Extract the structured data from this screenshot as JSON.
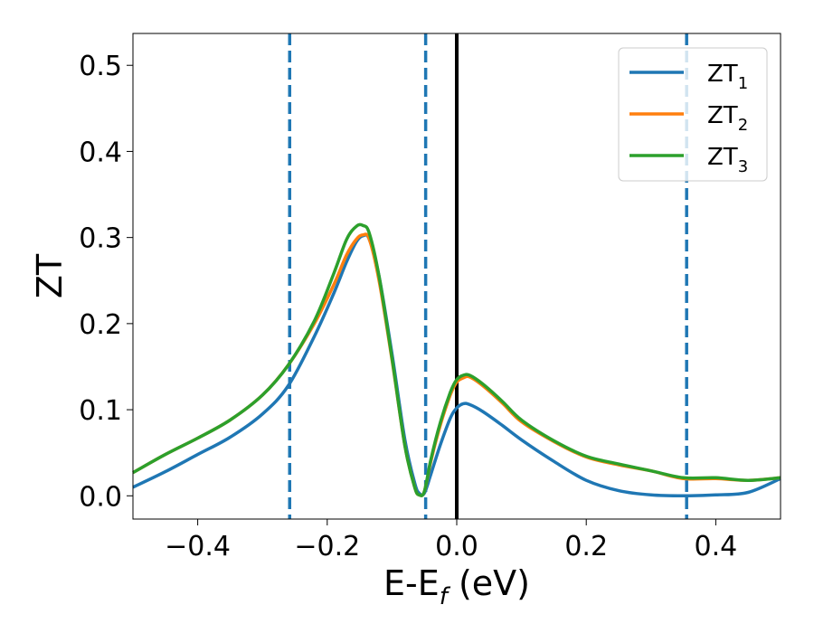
{
  "chart_data": {
    "type": "line",
    "xlabel": "E-E",
    "xlabel_sub": "f",
    "xlabel_unit": " (eV)",
    "ylabel": "ZT",
    "xlim": [
      -0.5,
      0.5
    ],
    "ylim": [
      -0.027,
      0.537
    ],
    "xticks": [
      -0.4,
      -0.2,
      0.0,
      0.2,
      0.4
    ],
    "xtick_labels": [
      "−0.4",
      "−0.2",
      "0.0",
      "0.2",
      "0.4"
    ],
    "yticks": [
      0.0,
      0.1,
      0.2,
      0.3,
      0.4,
      0.5
    ],
    "ytick_labels": [
      "0.0",
      "0.1",
      "0.2",
      "0.3",
      "0.4",
      "0.5"
    ],
    "legend_position": "top-right",
    "grid": false,
    "vertical_lines": [
      {
        "x": -0.258,
        "style": "dashed",
        "color": "#1f77b4"
      },
      {
        "x": -0.048,
        "style": "dashed",
        "color": "#1f77b4"
      },
      {
        "x": 0.0,
        "style": "solid",
        "color": "#000000"
      },
      {
        "x": 0.355,
        "style": "dashed",
        "color": "#1f77b4"
      }
    ],
    "series": [
      {
        "name": "ZT",
        "name_sub": "1",
        "color": "#1f77b4",
        "x": [
          -0.5,
          -0.45,
          -0.4,
          -0.35,
          -0.3,
          -0.26,
          -0.22,
          -0.19,
          -0.17,
          -0.155,
          -0.145,
          -0.135,
          -0.12,
          -0.1,
          -0.08,
          -0.065,
          -0.058,
          -0.05,
          -0.04,
          -0.025,
          -0.01,
          0.0,
          0.01,
          0.02,
          0.04,
          0.07,
          0.1,
          0.15,
          0.2,
          0.25,
          0.3,
          0.35,
          0.4,
          0.45,
          0.5
        ],
        "values": [
          0.01,
          0.028,
          0.048,
          0.068,
          0.095,
          0.128,
          0.185,
          0.235,
          0.272,
          0.295,
          0.302,
          0.298,
          0.255,
          0.165,
          0.065,
          0.015,
          0.003,
          0.003,
          0.025,
          0.06,
          0.09,
          0.102,
          0.107,
          0.106,
          0.098,
          0.082,
          0.065,
          0.04,
          0.018,
          0.006,
          0.001,
          0.0,
          0.001,
          0.004,
          0.02
        ]
      },
      {
        "name": "ZT",
        "name_sub": "2",
        "color": "#ff7f0e",
        "x": [
          -0.5,
          -0.45,
          -0.4,
          -0.35,
          -0.3,
          -0.26,
          -0.22,
          -0.19,
          -0.17,
          -0.155,
          -0.145,
          -0.135,
          -0.12,
          -0.1,
          -0.08,
          -0.065,
          -0.058,
          -0.05,
          -0.04,
          -0.025,
          -0.01,
          0.0,
          0.01,
          0.02,
          0.04,
          0.07,
          0.1,
          0.15,
          0.2,
          0.25,
          0.3,
          0.35,
          0.4,
          0.45,
          0.5
        ],
        "values": [
          0.027,
          0.048,
          0.067,
          0.088,
          0.117,
          0.152,
          0.2,
          0.245,
          0.28,
          0.298,
          0.303,
          0.298,
          0.25,
          0.158,
          0.058,
          0.01,
          0.001,
          0.005,
          0.04,
          0.083,
          0.117,
          0.132,
          0.137,
          0.138,
          0.128,
          0.108,
          0.086,
          0.063,
          0.045,
          0.036,
          0.029,
          0.02,
          0.02,
          0.018,
          0.021
        ]
      },
      {
        "name": "ZT",
        "name_sub": "3",
        "color": "#2ca02c",
        "x": [
          -0.5,
          -0.45,
          -0.4,
          -0.35,
          -0.3,
          -0.26,
          -0.22,
          -0.19,
          -0.17,
          -0.155,
          -0.145,
          -0.135,
          -0.12,
          -0.1,
          -0.08,
          -0.065,
          -0.058,
          -0.05,
          -0.04,
          -0.025,
          -0.01,
          0.0,
          0.01,
          0.02,
          0.04,
          0.07,
          0.1,
          0.15,
          0.2,
          0.25,
          0.3,
          0.35,
          0.4,
          0.45,
          0.5
        ],
        "values": [
          0.027,
          0.048,
          0.067,
          0.088,
          0.117,
          0.152,
          0.203,
          0.258,
          0.298,
          0.313,
          0.314,
          0.305,
          0.255,
          0.16,
          0.058,
          0.01,
          0.001,
          0.005,
          0.042,
          0.086,
          0.12,
          0.135,
          0.14,
          0.14,
          0.13,
          0.11,
          0.088,
          0.064,
          0.046,
          0.037,
          0.029,
          0.021,
          0.021,
          0.018,
          0.021
        ]
      }
    ]
  }
}
